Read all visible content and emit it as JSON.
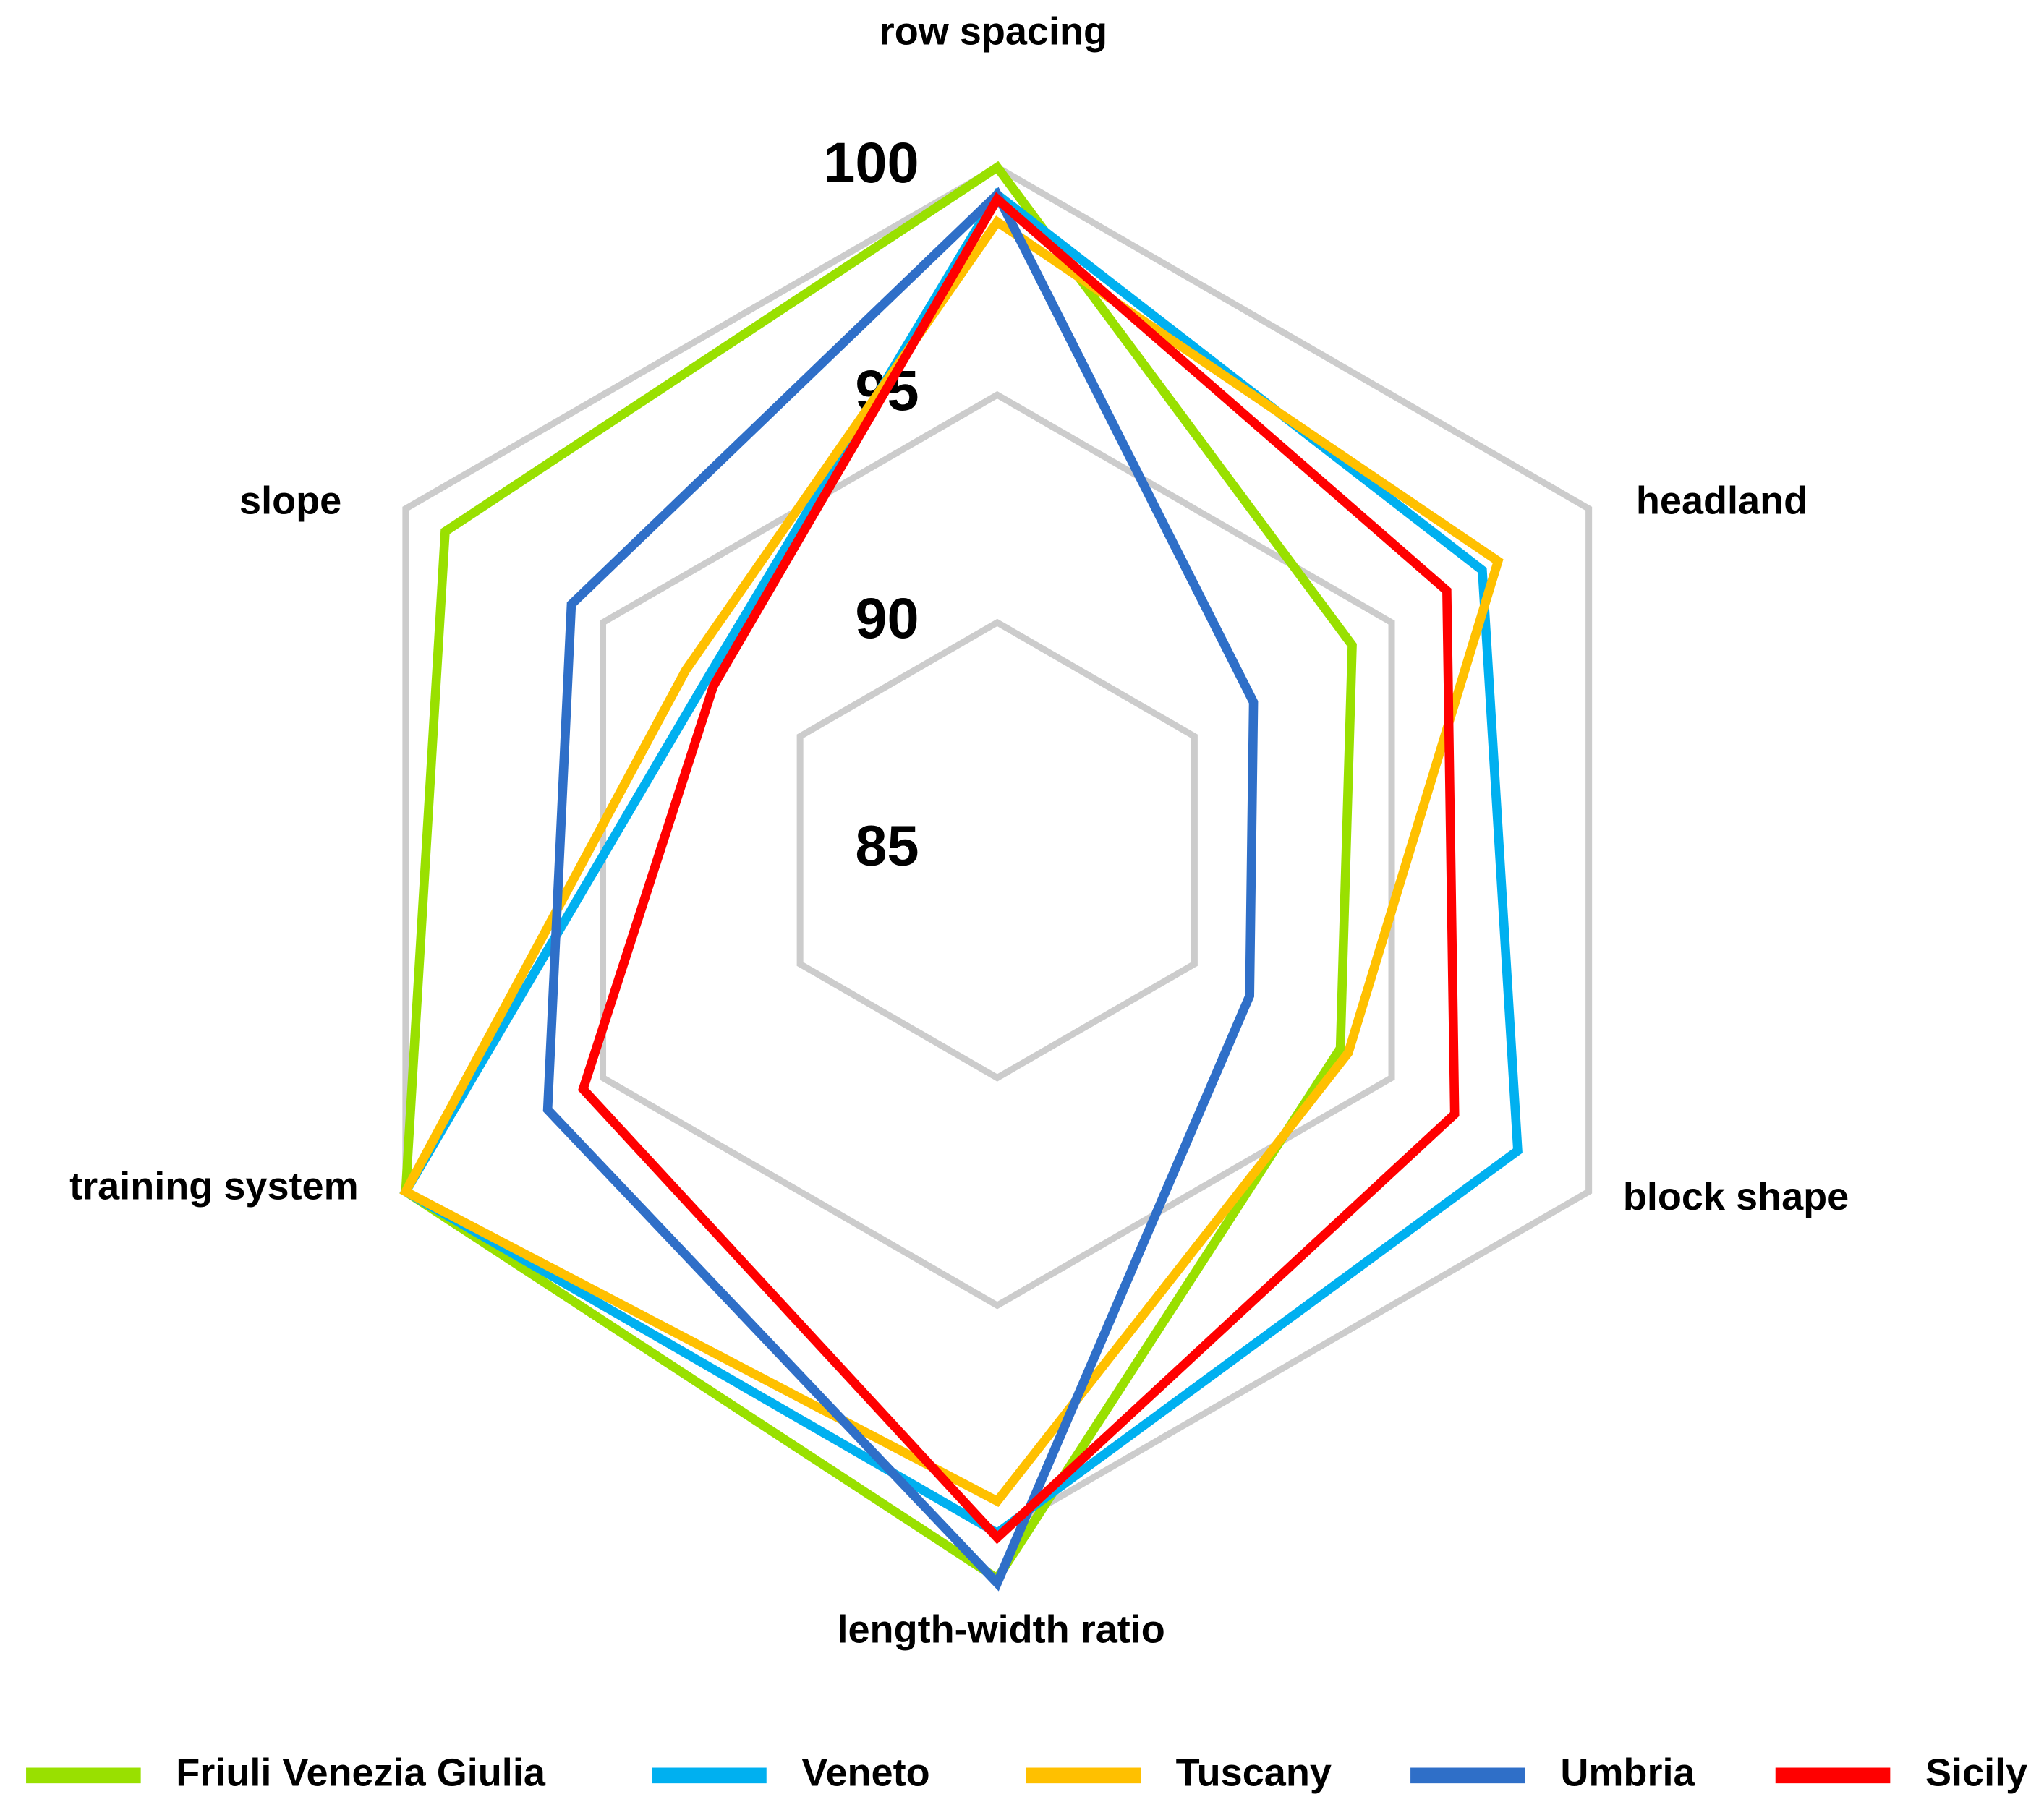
{
  "chart_data": {
    "type": "radar",
    "categories": [
      "row spacing",
      "headland",
      "block shape",
      "length-width ratio",
      "training system",
      "slope"
    ],
    "rlim": [
      85,
      100
    ],
    "rticks": [
      85,
      90,
      95,
      100
    ],
    "grid": true,
    "grid_color": "#cccccc",
    "legend": "bottom",
    "series": [
      {
        "name": "Friuli Venezia Giulia",
        "color": "#99e000",
        "values": [
          100,
          94.0,
          93.7,
          101.0,
          100,
          99.0
        ]
      },
      {
        "name": "Veneto",
        "color": "#00b0f0",
        "values": [
          99.4,
          97.3,
          98.2,
          100,
          100,
          92.4
        ]
      },
      {
        "name": "Tuscany",
        "color": "#ffc000",
        "values": [
          98.8,
          97.7,
          93.9,
          99.3,
          100,
          92.9
        ]
      },
      {
        "name": "Umbria",
        "color": "#2f6fc8",
        "values": [
          99.4,
          91.5,
          91.4,
          101.1,
          96.4,
          95.8
        ]
      },
      {
        "name": "Sicily",
        "color": "#ff0000",
        "values": [
          99.3,
          96.4,
          96.6,
          100.1,
          95.5,
          92.2
        ]
      }
    ]
  }
}
